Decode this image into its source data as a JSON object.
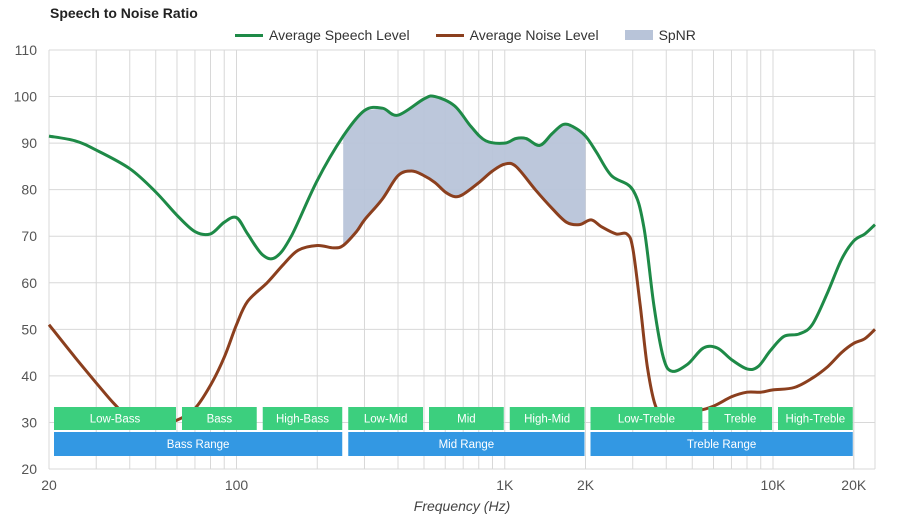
{
  "chart_data": {
    "type": "line",
    "title": "Speech to Noise Ratio",
    "xlabel": "Frequency (Hz)",
    "ylabel": "",
    "xscale": "log",
    "xlim": [
      20,
      24000
    ],
    "ylim": [
      20,
      110
    ],
    "yticks": [
      20,
      30,
      40,
      50,
      60,
      70,
      80,
      90,
      100,
      110
    ],
    "xticks": [
      {
        "value": 20,
        "label": "20"
      },
      {
        "value": 100,
        "label": "100"
      },
      {
        "value": 1000,
        "label": "1K"
      },
      {
        "value": 2000,
        "label": "2K"
      },
      {
        "value": 10000,
        "label": "10K"
      },
      {
        "value": 20000,
        "label": "20K"
      }
    ],
    "grid": true,
    "legend_position": "top-center",
    "series": [
      {
        "name": "Average Speech Level",
        "color": "#1e8a47",
        "points": [
          [
            20,
            91.5
          ],
          [
            25,
            90.5
          ],
          [
            30,
            88.5
          ],
          [
            40,
            84.5
          ],
          [
            50,
            79.5
          ],
          [
            60,
            74.5
          ],
          [
            70,
            71.0
          ],
          [
            80,
            70.5
          ],
          [
            90,
            73.0
          ],
          [
            100,
            74.0
          ],
          [
            110,
            70.5
          ],
          [
            125,
            66.0
          ],
          [
            140,
            65.5
          ],
          [
            160,
            70.0
          ],
          [
            200,
            82.0
          ],
          [
            250,
            91.5
          ],
          [
            300,
            97.0
          ],
          [
            350,
            97.5
          ],
          [
            400,
            96.0
          ],
          [
            500,
            99.5
          ],
          [
            550,
            100.0
          ],
          [
            650,
            98.0
          ],
          [
            750,
            93.5
          ],
          [
            850,
            90.5
          ],
          [
            1000,
            90.0
          ],
          [
            1100,
            91.0
          ],
          [
            1200,
            91.0
          ],
          [
            1350,
            89.5
          ],
          [
            1500,
            92.0
          ],
          [
            1650,
            94.0
          ],
          [
            1800,
            93.5
          ],
          [
            2000,
            91.5
          ],
          [
            2200,
            88.0
          ],
          [
            2500,
            83.0
          ],
          [
            3000,
            80.0
          ],
          [
            3300,
            72.0
          ],
          [
            3600,
            55.0
          ],
          [
            3900,
            44.0
          ],
          [
            4200,
            41.0
          ],
          [
            4800,
            42.5
          ],
          [
            5500,
            46.0
          ],
          [
            6200,
            46.0
          ],
          [
            7000,
            43.5
          ],
          [
            8000,
            41.5
          ],
          [
            8800,
            42.0
          ],
          [
            9800,
            45.5
          ],
          [
            11000,
            48.5
          ],
          [
            12500,
            49.0
          ],
          [
            14000,
            51.0
          ],
          [
            16000,
            58.0
          ],
          [
            18000,
            65.0
          ],
          [
            20000,
            69.0
          ],
          [
            22000,
            70.5
          ],
          [
            24000,
            72.5
          ]
        ]
      },
      {
        "name": "Average Noise Level",
        "color": "#8b3f1e",
        "points": [
          [
            20,
            51.0
          ],
          [
            25,
            44.0
          ],
          [
            30,
            38.5
          ],
          [
            35,
            34.0
          ],
          [
            40,
            31.0
          ],
          [
            50,
            29.5
          ],
          [
            60,
            30.5
          ],
          [
            70,
            33.0
          ],
          [
            80,
            38.0
          ],
          [
            90,
            44.0
          ],
          [
            100,
            51.0
          ],
          [
            110,
            56.0
          ],
          [
            130,
            60.0
          ],
          [
            150,
            64.0
          ],
          [
            170,
            67.0
          ],
          [
            200,
            68.0
          ],
          [
            230,
            67.5
          ],
          [
            250,
            68.0
          ],
          [
            280,
            71.0
          ],
          [
            300,
            73.5
          ],
          [
            350,
            78.0
          ],
          [
            400,
            83.0
          ],
          [
            450,
            84.0
          ],
          [
            500,
            83.0
          ],
          [
            550,
            81.5
          ],
          [
            600,
            79.5
          ],
          [
            650,
            78.5
          ],
          [
            700,
            79.0
          ],
          [
            800,
            81.5
          ],
          [
            900,
            84.0
          ],
          [
            1000,
            85.5
          ],
          [
            1100,
            85.0
          ],
          [
            1300,
            80.0
          ],
          [
            1500,
            76.0
          ],
          [
            1700,
            73.0
          ],
          [
            1900,
            72.5
          ],
          [
            2100,
            73.5
          ],
          [
            2300,
            72.0
          ],
          [
            2600,
            70.5
          ],
          [
            2850,
            70.5
          ],
          [
            3000,
            67.5
          ],
          [
            3200,
            55.0
          ],
          [
            3400,
            42.0
          ],
          [
            3650,
            33.5
          ],
          [
            3950,
            32.0
          ],
          [
            4400,
            32.5
          ],
          [
            5200,
            32.5
          ],
          [
            6000,
            33.5
          ],
          [
            7000,
            35.5
          ],
          [
            8000,
            36.5
          ],
          [
            9000,
            36.5
          ],
          [
            10000,
            37.0
          ],
          [
            12000,
            37.5
          ],
          [
            14000,
            39.5
          ],
          [
            16000,
            42.0
          ],
          [
            18000,
            45.0
          ],
          [
            20000,
            47.0
          ],
          [
            22000,
            48.0
          ],
          [
            24000,
            50.0
          ]
        ]
      }
    ],
    "fill_area": {
      "name": "SpNR",
      "color": "#b8c4d9",
      "x_range": [
        250,
        2000
      ]
    },
    "bands_upper": [
      {
        "label": "Low-Bass",
        "range": [
          20,
          60
        ]
      },
      {
        "label": "Bass",
        "range": [
          60,
          120
        ]
      },
      {
        "label": "High-Bass",
        "range": [
          120,
          250
        ]
      },
      {
        "label": "Low-Mid",
        "range": [
          250,
          500
        ]
      },
      {
        "label": "Mid",
        "range": [
          500,
          1000
        ]
      },
      {
        "label": "High-Mid",
        "range": [
          1000,
          2000
        ]
      },
      {
        "label": "Low-Treble",
        "range": [
          2000,
          5500
        ]
      },
      {
        "label": "Treble",
        "range": [
          5500,
          10000
        ]
      },
      {
        "label": "High-Treble",
        "range": [
          10000,
          20000
        ]
      }
    ],
    "bands_lower": [
      {
        "label": "Bass Range",
        "range": [
          20,
          250
        ]
      },
      {
        "label": "Mid Range",
        "range": [
          250,
          2000
        ]
      },
      {
        "label": "Treble Range",
        "range": [
          2000,
          20000
        ]
      }
    ],
    "band_colors": {
      "upper": "#3ccf7e",
      "lower": "#3398e3"
    }
  }
}
